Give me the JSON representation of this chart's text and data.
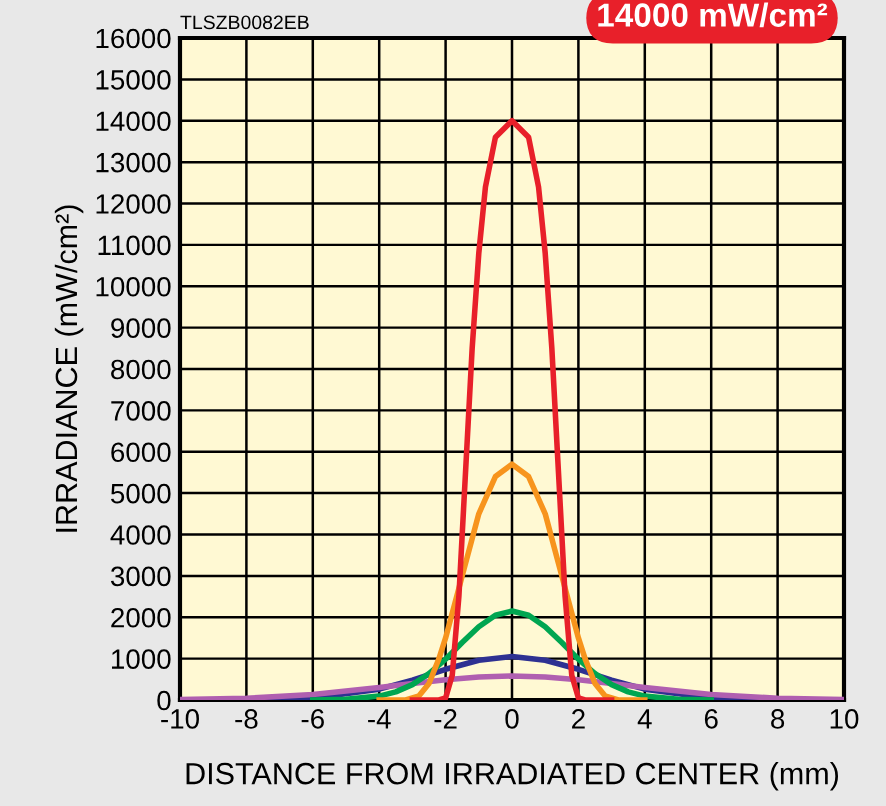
{
  "chart_data": {
    "type": "line",
    "xlabel": "DISTANCE FROM IRRADIATED CENTER (mm)",
    "ylabel": "IRRADIANCE (mW/cm²)",
    "annotations": [
      "TLSZB0082EB",
      "14000 mW/cm²"
    ],
    "xlim": [
      -10,
      10
    ],
    "xticks": [
      -10,
      -8,
      -6,
      -4,
      -2,
      0,
      2,
      4,
      6,
      8,
      10
    ],
    "ylim": [
      0,
      16000
    ],
    "yticks": [
      0,
      1000,
      2000,
      3000,
      4000,
      5000,
      6000,
      7000,
      8000,
      9000,
      10000,
      11000,
      12000,
      13000,
      14000,
      15000,
      16000
    ],
    "grid": true,
    "marker": "none",
    "line_style": "solid",
    "series": [
      {
        "color": "#2e3192",
        "x": [
          -10,
          -8,
          -6,
          -4,
          -3,
          -2,
          -1,
          0,
          1,
          2,
          3,
          4,
          6,
          8,
          10
        ],
        "values": [
          0,
          4,
          46,
          262,
          480,
          742,
          960,
          1050,
          960,
          742,
          480,
          262,
          46,
          4,
          0
        ]
      },
      {
        "color": "#b05fb0",
        "x": [
          -10,
          -8,
          -6,
          -4,
          -3,
          -2,
          -1,
          0,
          1,
          2,
          3,
          4,
          6,
          8,
          10
        ],
        "values": [
          10,
          42,
          133,
          302,
          400,
          490,
          555,
          580,
          555,
          490,
          400,
          302,
          133,
          42,
          10
        ]
      },
      {
        "color": "#00a651",
        "x": [
          -6,
          -5,
          -4,
          -3.5,
          -3,
          -2.5,
          -2,
          -1.5,
          -1,
          -0.5,
          0,
          0.5,
          1,
          1.5,
          2,
          2.5,
          3,
          3.5,
          4,
          5,
          6
        ],
        "values": [
          0,
          15,
          95,
          196,
          372,
          640,
          985,
          1390,
          1770,
          2050,
          2150,
          2050,
          1770,
          1390,
          985,
          640,
          372,
          196,
          95,
          15,
          0
        ]
      },
      {
        "color": "#f7941d",
        "x": [
          -4,
          -3.2,
          -2.8,
          -2.5,
          -2.2,
          -2,
          -1.5,
          -1,
          -0.5,
          0,
          0.5,
          1,
          1.5,
          2,
          2.2,
          2.5,
          2.8,
          3.2,
          4
        ],
        "values": [
          0,
          0,
          100,
          400,
          1000,
          1500,
          3000,
          4500,
          5400,
          5700,
          5400,
          4500,
          3000,
          1500,
          1000,
          400,
          100,
          0,
          0
        ]
      },
      {
        "color": "#e8202a",
        "x": [
          -3,
          -2.2,
          -2,
          -1.8,
          -1.6,
          -1.4,
          -1.2,
          -1,
          -0.8,
          -0.5,
          0,
          0.5,
          0.8,
          1,
          1.2,
          1.4,
          1.6,
          1.8,
          2,
          2.2,
          3
        ],
        "values": [
          0,
          0,
          50,
          600,
          2500,
          5500,
          8500,
          10800,
          12400,
          13600,
          14000,
          13600,
          12400,
          10800,
          8500,
          5500,
          2500,
          600,
          50,
          0,
          0
        ]
      }
    ]
  }
}
